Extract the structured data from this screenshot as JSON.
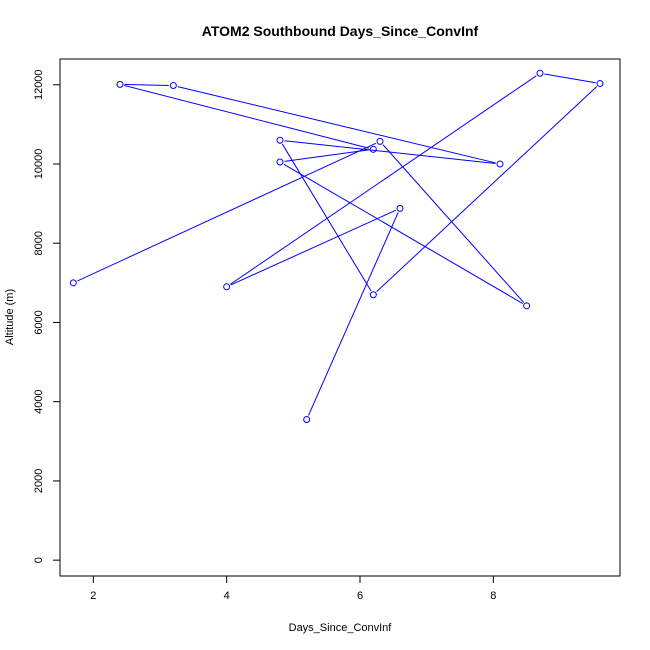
{
  "chart_data": {
    "type": "line",
    "title": "ATOM2 Southbound Days_Since_ConvInf",
    "xlabel": "Days_Since_ConvInf",
    "ylabel": "Altitude (m)",
    "xlim": [
      1.5,
      9.9
    ],
    "ylim": [
      -400,
      12650
    ],
    "x_ticks": [
      2,
      4,
      6,
      8
    ],
    "y_ticks": [
      0,
      2000,
      4000,
      6000,
      8000,
      10000,
      12000
    ],
    "grid": false,
    "legend": "none",
    "series": [
      {
        "color": "#0000ff",
        "marker": "open-circle",
        "points": [
          {
            "x": 5.2,
            "y": 3550
          },
          {
            "x": 6.6,
            "y": 8880
          },
          {
            "x": 4.0,
            "y": 6900
          },
          {
            "x": 8.7,
            "y": 12290
          },
          {
            "x": 9.6,
            "y": 12030
          },
          {
            "x": 6.2,
            "y": 6700
          },
          {
            "x": 4.8,
            "y": 10600
          },
          {
            "x": 8.1,
            "y": 10000
          },
          {
            "x": 3.2,
            "y": 11980
          },
          {
            "x": 2.4,
            "y": 12010
          },
          {
            "x": 6.2,
            "y": 10370
          },
          {
            "x": 4.8,
            "y": 10050
          },
          {
            "x": 8.5,
            "y": 6420
          },
          {
            "x": 6.3,
            "y": 10570
          },
          {
            "x": 1.7,
            "y": 7000
          }
        ]
      }
    ]
  }
}
